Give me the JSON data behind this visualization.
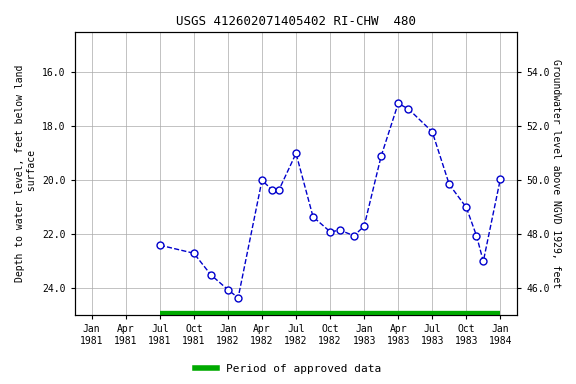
{
  "title": "USGS 412602071405402 RI-CHW  480",
  "ylabel_left": "Depth to water level, feet below land\n surface",
  "ylabel_right": "Groundwater level above NGVD 1929, feet",
  "tick_labels": [
    "Jan\n1981",
    "Apr\n1981",
    "Jul\n1981",
    "Oct\n1981",
    "Jan\n1982",
    "Apr\n1982",
    "Jul\n1982",
    "Oct\n1982",
    "Jan\n1983",
    "Apr\n1983",
    "Jul\n1983",
    "Oct\n1983",
    "Jan\n1984"
  ],
  "tick_positions": [
    0,
    1,
    2,
    3,
    4,
    5,
    6,
    7,
    8,
    9,
    10,
    11,
    12
  ],
  "data_x": [
    2.0,
    3.0,
    3.5,
    4.0,
    4.3,
    5.0,
    5.3,
    5.5,
    6.0,
    6.5,
    7.0,
    7.3,
    7.7,
    8.0,
    8.5,
    9.0,
    9.3,
    10.0,
    10.5,
    11.0,
    11.3,
    11.5,
    12.0
  ],
  "data_y": [
    22.4,
    22.7,
    23.5,
    24.05,
    24.35,
    20.0,
    20.35,
    20.35,
    19.0,
    21.35,
    21.9,
    21.85,
    22.05,
    21.7,
    19.1,
    17.15,
    17.35,
    18.2,
    20.15,
    21.0,
    22.05,
    23.0,
    19.95
  ],
  "ylim_left_bottom": 25.0,
  "ylim_left_top": 14.5,
  "ylim_right_bottom": 45.0,
  "ylim_right_top": 55.5,
  "yticks_left": [
    16.0,
    18.0,
    20.0,
    22.0,
    24.0
  ],
  "yticks_right": [
    46.0,
    48.0,
    50.0,
    52.0,
    54.0
  ],
  "xlim_left": -0.5,
  "xlim_right": 12.5,
  "line_color": "#0000CC",
  "marker_facecolor": "#FFFFFF",
  "marker_edgecolor": "#0000CC",
  "grid_color": "#AAAAAA",
  "bg_color": "#FFFFFF",
  "legend_label": "Period of approved data",
  "legend_color": "#00AA00",
  "approved_x_start": 2.0,
  "approved_x_end": 12.0,
  "approved_y": 24.99,
  "title_fontsize": 9,
  "axis_fontsize": 7,
  "tick_fontsize": 7,
  "legend_fontsize": 8,
  "marker_size": 5,
  "line_width": 1.0
}
